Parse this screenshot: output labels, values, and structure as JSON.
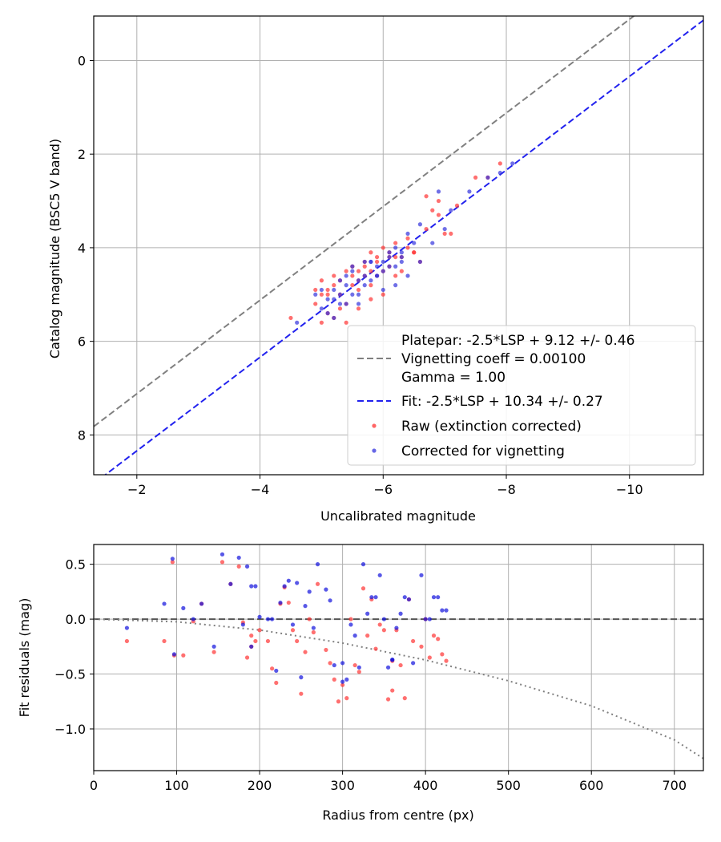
{
  "chart_data": [
    {
      "type": "scatter",
      "xlabel": "Uncalibrated magnitude",
      "ylabel": "Catalog magnitude (BSC5 V band)",
      "xlim": [
        -1.3,
        -11.2
      ],
      "ylim": [
        8.85,
        -0.95
      ],
      "x_inverted": true,
      "y_inverted": true,
      "grid": true,
      "legend_position": "lower-right",
      "x_ticks": [
        -2,
        -4,
        -6,
        -8,
        -10
      ],
      "x_tick_labels": [
        "−2",
        "−4",
        "−6",
        "−8",
        "−10"
      ],
      "y_ticks": [
        0,
        2,
        4,
        6,
        8
      ],
      "y_tick_labels": [
        "0",
        "2",
        "4",
        "6",
        "8"
      ],
      "legend": [
        {
          "label": "Platepar: -2.5*LSP + 9.12 +/- 0.46",
          "marker": "none"
        },
        {
          "label": "Vignetting coeff = 0.00100",
          "marker": "dashed",
          "color": "#808080"
        },
        {
          "label": "Gamma = 1.00",
          "marker": "none"
        },
        {
          "label": "Fit: -2.5*LSP + 10.34 +/- 0.27",
          "marker": "dashed",
          "color": "#3333ee"
        },
        {
          "label": "Raw (extinction corrected)",
          "marker": "dot",
          "color": "#ff3333"
        },
        {
          "label": "Corrected for vignetting",
          "marker": "dot",
          "color": "#3333dd"
        }
      ],
      "lines": [
        {
          "label": "Platepar",
          "intercept": 9.12,
          "slope": 1,
          "color": "#808080",
          "style": "dashed"
        },
        {
          "label": "Fit",
          "intercept": 10.34,
          "slope": 1,
          "color": "#2222ee",
          "style": "dashed"
        }
      ],
      "series": [
        {
          "name": "Raw (extinction corrected)",
          "color": "#ff3333",
          "x": [
            -7.9,
            -7.7,
            -7.5,
            -7.2,
            -7.0,
            -6.9,
            -6.8,
            -6.7,
            -6.6,
            -6.5,
            -6.4,
            -6.3,
            -6.2,
            -6.1,
            -6.0,
            -5.9,
            -5.8,
            -5.7,
            -5.6,
            -5.5,
            -5.4,
            -5.3,
            -5.2,
            -5.1,
            -5.0,
            -4.9,
            -4.5,
            -5.4,
            -5.6,
            -5.8,
            -6.0,
            -6.2,
            -6.1,
            -5.9,
            -5.7,
            -5.5,
            -5.3,
            -5.1,
            -5.0,
            -5.2,
            -5.4,
            -5.6,
            -5.8,
            -6.0,
            -6.3,
            -6.5,
            -6.7,
            -5.2,
            -5.5,
            -5.9,
            -6.4,
            -4.9,
            -5.1,
            -5.3,
            -5.7,
            -6.1,
            -7.1,
            -6.9,
            -5.0,
            -5.6,
            -5.8,
            -6.2
          ],
          "y": [
            2.2,
            2.5,
            2.5,
            3.1,
            3.7,
            3.0,
            3.2,
            2.9,
            4.3,
            4.1,
            4.0,
            4.5,
            4.2,
            4.4,
            4.0,
            4.6,
            4.5,
            4.3,
            4.7,
            4.6,
            4.5,
            4.7,
            4.8,
            4.9,
            4.7,
            5.2,
            5.5,
            5.6,
            5.3,
            5.1,
            5.0,
            4.6,
            4.1,
            4.2,
            4.4,
            4.8,
            5.0,
            5.4,
            5.6,
            5.5,
            5.2,
            4.9,
            4.8,
            4.5,
            4.2,
            4.1,
            3.6,
            4.6,
            4.4,
            4.3,
            3.8,
            4.9,
            5.0,
            5.3,
            4.6,
            4.2,
            3.7,
            3.3,
            5.0,
            4.5,
            4.1,
            3.9
          ]
        },
        {
          "name": "Corrected for vignetting",
          "color": "#3333dd",
          "x": [
            -8.1,
            -7.9,
            -7.7,
            -7.4,
            -7.1,
            -6.9,
            -6.6,
            -6.4,
            -6.3,
            -6.2,
            -6.1,
            -6.0,
            -5.9,
            -5.8,
            -5.7,
            -5.6,
            -5.5,
            -5.4,
            -5.3,
            -5.2,
            -5.1,
            -5.0,
            -4.6,
            -5.1,
            -5.3,
            -5.5,
            -5.7,
            -5.9,
            -6.1,
            -6.3,
            -6.5,
            -6.4,
            -6.2,
            -6.0,
            -5.8,
            -5.6,
            -5.4,
            -5.2,
            -5.0,
            -5.3,
            -5.5,
            -5.7,
            -5.9,
            -6.1,
            -6.3,
            -6.6,
            -5.2,
            -5.6,
            -6.0,
            -6.2,
            -5.4,
            -5.8,
            -4.9,
            -6.8,
            -7.0
          ],
          "y": [
            2.2,
            2.4,
            2.5,
            2.8,
            3.2,
            2.8,
            3.5,
            3.7,
            4.1,
            4.0,
            4.2,
            4.3,
            4.4,
            4.3,
            4.6,
            4.7,
            4.5,
            4.8,
            5.0,
            4.9,
            5.1,
            5.3,
            5.6,
            5.4,
            5.2,
            5.0,
            4.8,
            4.6,
            4.4,
            4.2,
            3.9,
            4.6,
            4.8,
            4.5,
            4.7,
            5.0,
            5.2,
            5.1,
            4.9,
            4.7,
            4.4,
            4.3,
            4.6,
            4.1,
            4.3,
            4.3,
            5.5,
            5.2,
            4.9,
            4.4,
            4.6,
            4.3,
            5.0,
            3.9,
            3.6
          ]
        }
      ]
    },
    {
      "type": "scatter",
      "xlabel": "Radius from centre (px)",
      "ylabel": "Fit residuals (mag)",
      "xlim": [
        0,
        735
      ],
      "ylim": [
        -1.38,
        0.68
      ],
      "grid": true,
      "x_ticks": [
        0,
        100,
        200,
        300,
        400,
        500,
        600,
        700
      ],
      "x_tick_labels": [
        "0",
        "100",
        "200",
        "300",
        "400",
        "500",
        "600",
        "700"
      ],
      "y_ticks": [
        0.5,
        0.0,
        -0.5,
        -1.0
      ],
      "y_tick_labels": [
        "0.5",
        "0.0",
        "−0.5",
        "−1.0"
      ],
      "lines": [
        {
          "label": "zero",
          "points": [
            [
              0,
              0
            ],
            [
              735,
              0
            ]
          ],
          "color": "#555555",
          "style": "dashed"
        },
        {
          "label": "vignetting",
          "points": [
            [
              0,
              0
            ],
            [
              100,
              -0.024
            ],
            [
              200,
              -0.099
            ],
            [
              300,
              -0.218
            ],
            [
              400,
              -0.372
            ],
            [
              500,
              -0.562
            ],
            [
              600,
              -0.79
            ],
            [
              700,
              -1.1
            ],
            [
              735,
              -1.27
            ]
          ],
          "color": "#808080",
          "style": "dotted"
        }
      ],
      "series": [
        {
          "name": "Raw (extinction corrected)",
          "color": "#ff3333",
          "x": [
            40,
            85,
            95,
            97,
            108,
            120,
            130,
            145,
            155,
            165,
            175,
            185,
            190,
            195,
            200,
            210,
            220,
            230,
            245,
            250,
            260,
            270,
            280,
            290,
            295,
            305,
            310,
            320,
            330,
            335,
            345,
            355,
            360,
            365,
            375,
            385,
            395,
            405,
            415,
            425,
            180,
            190,
            215,
            225,
            235,
            240,
            255,
            265,
            285,
            300,
            315,
            325,
            340,
            350,
            360,
            370,
            380,
            400,
            410,
            420
          ],
          "y": [
            -0.2,
            -0.2,
            0.52,
            -0.33,
            -0.33,
            -0.02,
            0.14,
            -0.3,
            0.52,
            0.32,
            0.48,
            -0.35,
            -0.15,
            -0.2,
            -0.1,
            -0.2,
            -0.58,
            0.29,
            -0.2,
            -0.68,
            0.0,
            0.32,
            -0.28,
            -0.55,
            -0.75,
            -0.72,
            0.0,
            -0.48,
            -0.15,
            0.18,
            -0.05,
            -0.73,
            -0.65,
            -0.1,
            -0.72,
            -0.2,
            -0.25,
            -0.35,
            -0.18,
            -0.38,
            -0.03,
            -0.25,
            -0.45,
            0.14,
            0.15,
            -0.1,
            -0.3,
            -0.12,
            -0.4,
            -0.6,
            -0.42,
            0.28,
            -0.27,
            -0.1,
            -0.38,
            -0.42,
            0.18,
            0.0,
            -0.15,
            -0.32
          ]
        },
        {
          "name": "Corrected for vignetting",
          "color": "#1111dd",
          "x": [
            40,
            85,
            95,
            97,
            108,
            120,
            130,
            145,
            155,
            165,
            175,
            185,
            190,
            195,
            200,
            210,
            220,
            230,
            245,
            250,
            260,
            270,
            280,
            290,
            300,
            305,
            310,
            320,
            330,
            335,
            345,
            355,
            360,
            365,
            375,
            385,
            395,
            405,
            415,
            425,
            180,
            190,
            215,
            225,
            235,
            240,
            255,
            265,
            285,
            300,
            315,
            325,
            340,
            350,
            360,
            370,
            380,
            400,
            410,
            420
          ],
          "y": [
            -0.08,
            0.14,
            0.55,
            -0.32,
            0.1,
            0.0,
            0.14,
            -0.25,
            0.59,
            0.32,
            0.56,
            0.48,
            0.3,
            0.3,
            0.02,
            0.0,
            -0.47,
            0.3,
            0.33,
            -0.53,
            0.25,
            0.5,
            0.27,
            -0.42,
            -0.57,
            -0.55,
            -0.05,
            -0.44,
            0.05,
            0.2,
            0.4,
            -0.44,
            -0.37,
            -0.08,
            0.2,
            -0.4,
            0.4,
            0.0,
            0.2,
            0.08,
            -0.05,
            -0.25,
            0.0,
            0.15,
            0.35,
            -0.05,
            0.12,
            -0.08,
            0.17,
            -0.4,
            -0.15,
            0.5,
            0.2,
            0.0,
            -0.37,
            0.05,
            0.18,
            0.0,
            0.2,
            0.08
          ]
        }
      ]
    }
  ]
}
